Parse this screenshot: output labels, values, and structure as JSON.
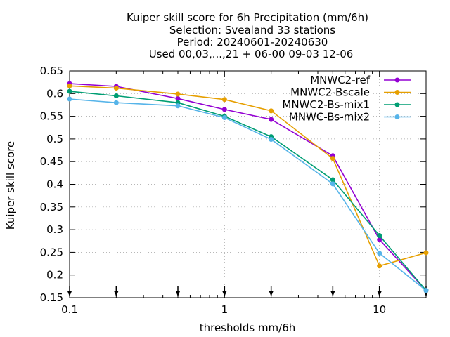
{
  "chart_data": {
    "type": "line",
    "title_lines": [
      "Kuiper skill score  for 6h Precipitation (mm/6h)",
      "Selection: Svealand      33 stations",
      "Period: 20240601-20240630",
      "Used 00,03,...,21 + 06-00 09-03 12-06"
    ],
    "xlabel": "thresholds mm/6h",
    "ylabel": "Kuiper skill score",
    "xscale": "log",
    "xlim": [
      0.1,
      20
    ],
    "ylim": [
      0.15,
      0.65
    ],
    "yticks": [
      0.15,
      0.2,
      0.25,
      0.3,
      0.35,
      0.4,
      0.45,
      0.5,
      0.55,
      0.6,
      0.65
    ],
    "ytick_labels": [
      "0.15",
      "0.2",
      "0.25",
      "0.3",
      "0.35",
      "0.4",
      "0.45",
      "0.5",
      "0.55",
      "0.6",
      "0.65"
    ],
    "xticks": [
      0.1,
      1,
      10
    ],
    "xtick_labels": [
      "0.1",
      "1",
      "10"
    ],
    "grid": true,
    "legend_position": "top-right",
    "threshold_markers": [
      0.1,
      0.2,
      0.5,
      1,
      2,
      5,
      10,
      20
    ],
    "x": [
      0.1,
      0.2,
      0.5,
      1,
      2,
      5,
      10,
      20
    ],
    "series": [
      {
        "name": "MNWC2-ref",
        "color": "#9400d3",
        "marker": "circle",
        "values": [
          0.622,
          0.616,
          0.589,
          0.565,
          0.543,
          0.463,
          0.278,
          0.166
        ]
      },
      {
        "name": "MNWC2-Bscale",
        "color": "#e69f00",
        "marker": "circle",
        "values": [
          0.617,
          0.612,
          0.599,
          0.587,
          0.562,
          0.457,
          0.22,
          0.249
        ]
      },
      {
        "name": "MNWC2-Bs-mix1",
        "color": "#009e73",
        "marker": "circle",
        "values": [
          0.605,
          0.595,
          0.58,
          0.55,
          0.505,
          0.41,
          0.287,
          0.166
        ]
      },
      {
        "name": "MNWC-Bs-mix2",
        "color": "#56b4e9",
        "marker": "circle",
        "values": [
          0.588,
          0.58,
          0.573,
          0.547,
          0.499,
          0.401,
          0.248,
          0.166
        ]
      }
    ]
  }
}
